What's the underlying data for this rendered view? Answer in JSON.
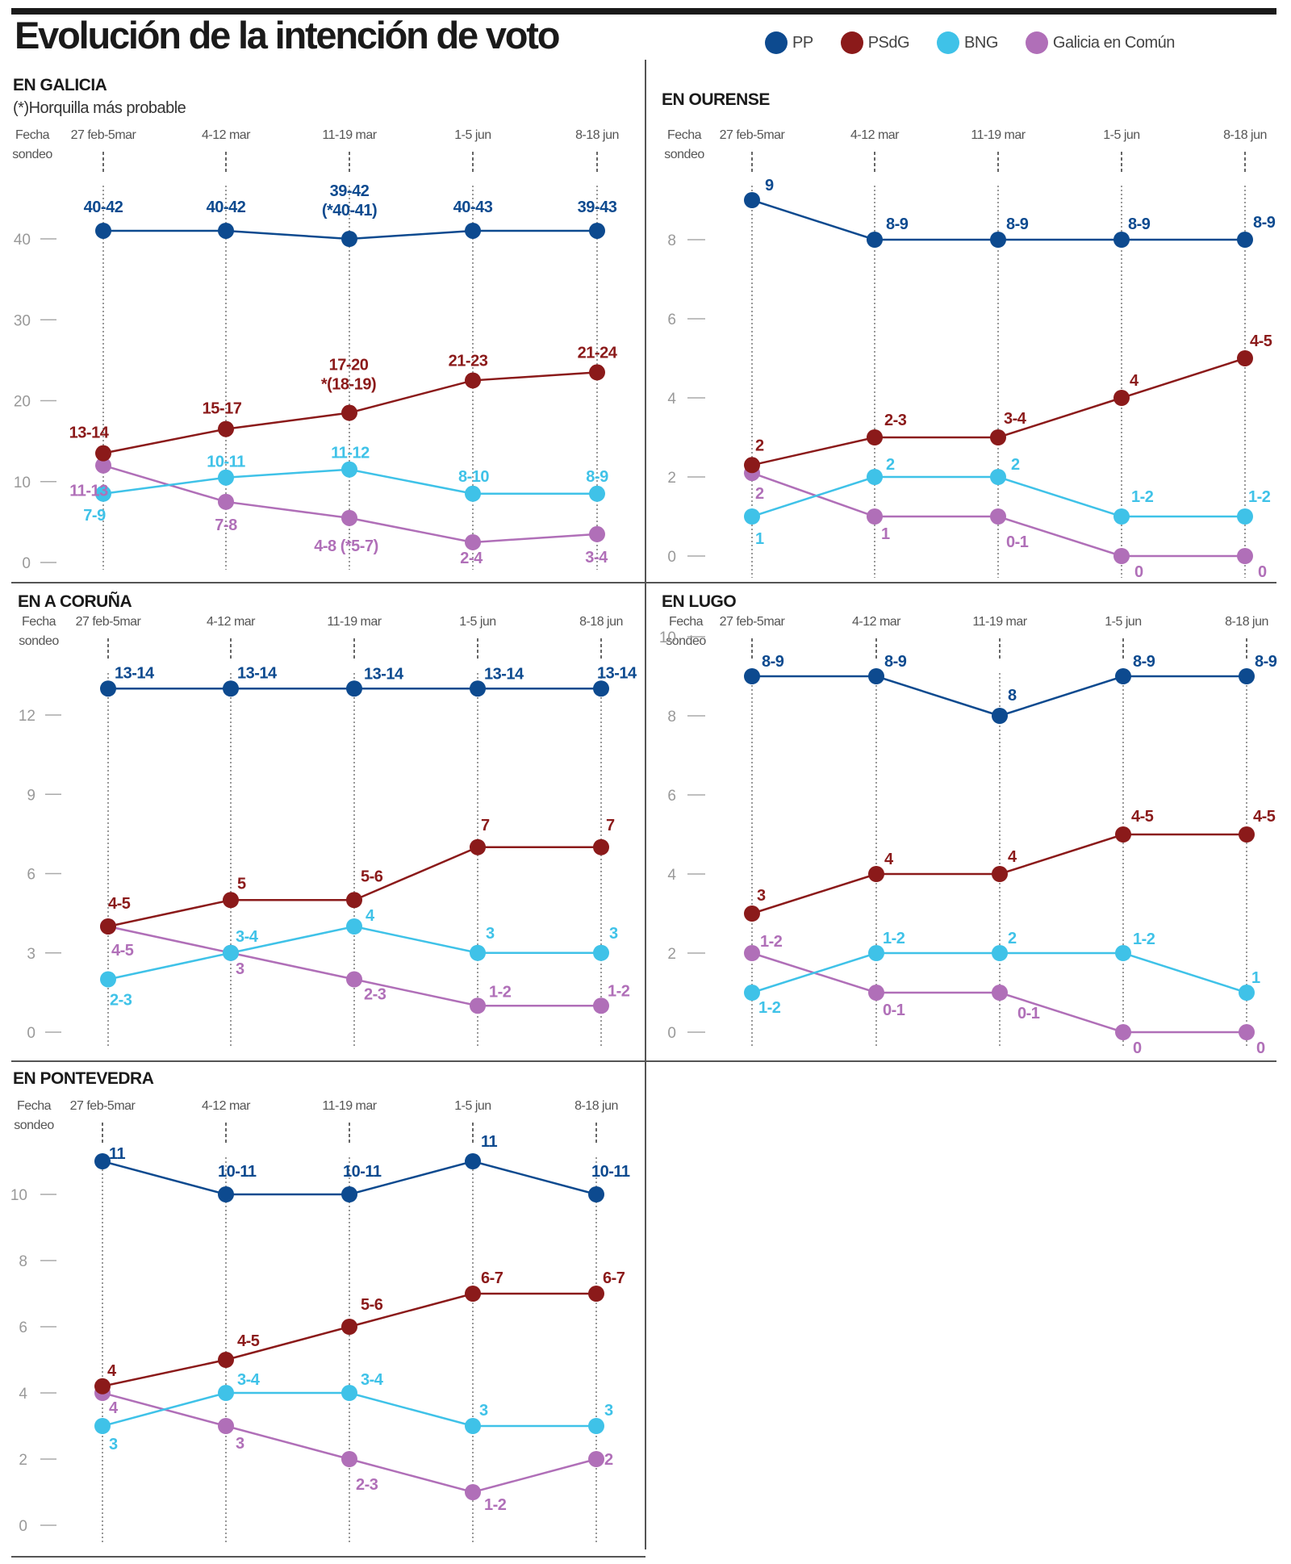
{
  "title": "Evolución de la intención de voto",
  "legend": [
    {
      "name": "PP",
      "color": "#0d4a8f"
    },
    {
      "name": "PSdG",
      "color": "#8b1a1a"
    },
    {
      "name": "BNG",
      "color": "#3fc2e8"
    },
    {
      "name": "Galicia en Común",
      "color": "#b06fb8"
    }
  ],
  "chart_data": [
    {
      "type": "line",
      "title": "EN GALICIA",
      "subtitle": "(*)Horquilla más probable",
      "xlabel": "Fecha sondeo",
      "categories": [
        "27 feb-5mar",
        "4-12 mar",
        "11-19 mar",
        "1-5 jun",
        "8-18 jun"
      ],
      "ylim": [
        0,
        40
      ],
      "yticks": [
        0,
        10,
        20,
        30,
        40
      ],
      "series": [
        {
          "name": "PP",
          "values": [
            41,
            41,
            40,
            41,
            41
          ],
          "labels": [
            "40-42",
            "40-42",
            "39-42\n(*40-41)",
            "40-43",
            "39-43"
          ]
        },
        {
          "name": "PSdG",
          "values": [
            13.5,
            16.5,
            18.5,
            22.5,
            23.5
          ],
          "labels": [
            "13-14",
            "15-17",
            "17-20\n*(18-19)",
            "21-23",
            "21-24"
          ]
        },
        {
          "name": "BNG",
          "values": [
            8.5,
            10.5,
            11.5,
            8.5,
            8.5
          ],
          "labels": [
            "7-9",
            "10-11",
            "11-12",
            "8-10",
            "8-9"
          ]
        },
        {
          "name": "Galicia en Común",
          "values": [
            12,
            7.5,
            5.5,
            2.5,
            3.5
          ],
          "labels": [
            "11-13",
            "7-8",
            "4-8 (*5-7)",
            "2-4",
            "3-4"
          ]
        }
      ]
    },
    {
      "type": "line",
      "title": "EN OURENSE",
      "xlabel": "Fecha sondeo",
      "categories": [
        "27 feb-5mar",
        "4-12 mar",
        "11-19 mar",
        "1-5 jun",
        "8-18 jun"
      ],
      "ylim": [
        0,
        8
      ],
      "yticks": [
        0,
        2,
        4,
        6,
        8
      ],
      "series": [
        {
          "name": "PP",
          "values": [
            9,
            8,
            8,
            8,
            8
          ],
          "labels": [
            "9",
            "8-9",
            "8-9",
            "8-9",
            "8-9"
          ]
        },
        {
          "name": "PSdG",
          "values": [
            2.3,
            3,
            3,
            4,
            5
          ],
          "labels": [
            "2",
            "2-3",
            "3-4",
            "4",
            "4-5"
          ]
        },
        {
          "name": "BNG",
          "values": [
            1,
            2,
            2,
            1,
            1
          ],
          "labels": [
            "1",
            "2",
            "2",
            "1-2",
            "1-2"
          ]
        },
        {
          "name": "Galicia en Común",
          "values": [
            2.1,
            1,
            1,
            0,
            0
          ],
          "labels": [
            "2",
            "1",
            "0-1",
            "0",
            "0"
          ]
        }
      ]
    },
    {
      "type": "line",
      "title": "EN A CORUÑA",
      "xlabel": "Fecha sondeo",
      "categories": [
        "27 feb-5mar",
        "4-12 mar",
        "11-19 mar",
        "1-5 jun",
        "8-18 jun"
      ],
      "ylim": [
        0,
        12
      ],
      "yticks": [
        0,
        3,
        6,
        9,
        12
      ],
      "series": [
        {
          "name": "PP",
          "values": [
            13,
            13,
            13,
            13,
            13
          ],
          "labels": [
            "13-14",
            "13-14",
            "13-14",
            "13-14",
            "13-14"
          ]
        },
        {
          "name": "PSdG",
          "values": [
            4,
            5,
            5,
            7,
            7
          ],
          "labels": [
            "4-5",
            "5",
            "5-6",
            "7",
            "7"
          ]
        },
        {
          "name": "BNG",
          "values": [
            2,
            3,
            4,
            3,
            3
          ],
          "labels": [
            "2-3",
            "3-4",
            "4",
            "3",
            "3"
          ]
        },
        {
          "name": "Galicia en Común",
          "values": [
            4,
            3,
            2,
            1,
            1
          ],
          "labels": [
            "4-5",
            "3",
            "2-3",
            "1-2",
            "1-2"
          ]
        }
      ]
    },
    {
      "type": "line",
      "title": "EN LUGO",
      "xlabel": "Fecha sondeo",
      "categories": [
        "27 feb-5mar",
        "4-12 mar",
        "11-19 mar",
        "1-5 jun",
        "8-18 jun"
      ],
      "ylim": [
        0,
        10
      ],
      "yticks": [
        0,
        2,
        4,
        6,
        8,
        10
      ],
      "series": [
        {
          "name": "PP",
          "values": [
            9,
            9,
            8,
            9,
            9
          ],
          "labels": [
            "8-9",
            "8-9",
            "8",
            "8-9",
            "8-9"
          ]
        },
        {
          "name": "PSdG",
          "values": [
            3,
            4,
            4,
            5,
            5
          ],
          "labels": [
            "3",
            "4",
            "4",
            "4-5",
            "4-5"
          ]
        },
        {
          "name": "BNG",
          "values": [
            1,
            2,
            2,
            2,
            1
          ],
          "labels": [
            "1-2",
            "1-2",
            "2",
            "1-2",
            "1"
          ]
        },
        {
          "name": "Galicia en Común",
          "values": [
            2,
            1,
            1,
            0,
            0
          ],
          "labels": [
            "1-2",
            "0-1",
            "0-1",
            "0",
            "0"
          ]
        }
      ]
    },
    {
      "type": "line",
      "title": "EN PONTEVEDRA",
      "xlabel": "Fecha sondeo",
      "categories": [
        "27 feb-5mar",
        "4-12 mar",
        "11-19 mar",
        "1-5 jun",
        "8-18 jun"
      ],
      "ylim": [
        0,
        10
      ],
      "yticks": [
        0,
        2,
        4,
        6,
        8,
        10
      ],
      "series": [
        {
          "name": "PP",
          "values": [
            11,
            10,
            10,
            11,
            10
          ],
          "labels": [
            "11",
            "10-11",
            "10-11",
            "11",
            "10-11"
          ]
        },
        {
          "name": "PSdG",
          "values": [
            4.2,
            5,
            6,
            7,
            7
          ],
          "labels": [
            "4",
            "4-5",
            "5-6",
            "6-7",
            "6-7"
          ]
        },
        {
          "name": "BNG",
          "values": [
            3,
            4,
            4,
            3,
            3
          ],
          "labels": [
            "3",
            "3-4",
            "3-4",
            "3",
            "3"
          ]
        },
        {
          "name": "Galicia en Común",
          "values": [
            4,
            3,
            2,
            1,
            2
          ],
          "labels": [
            "4",
            "3",
            "2-3",
            "1-2",
            "2"
          ]
        }
      ]
    }
  ]
}
